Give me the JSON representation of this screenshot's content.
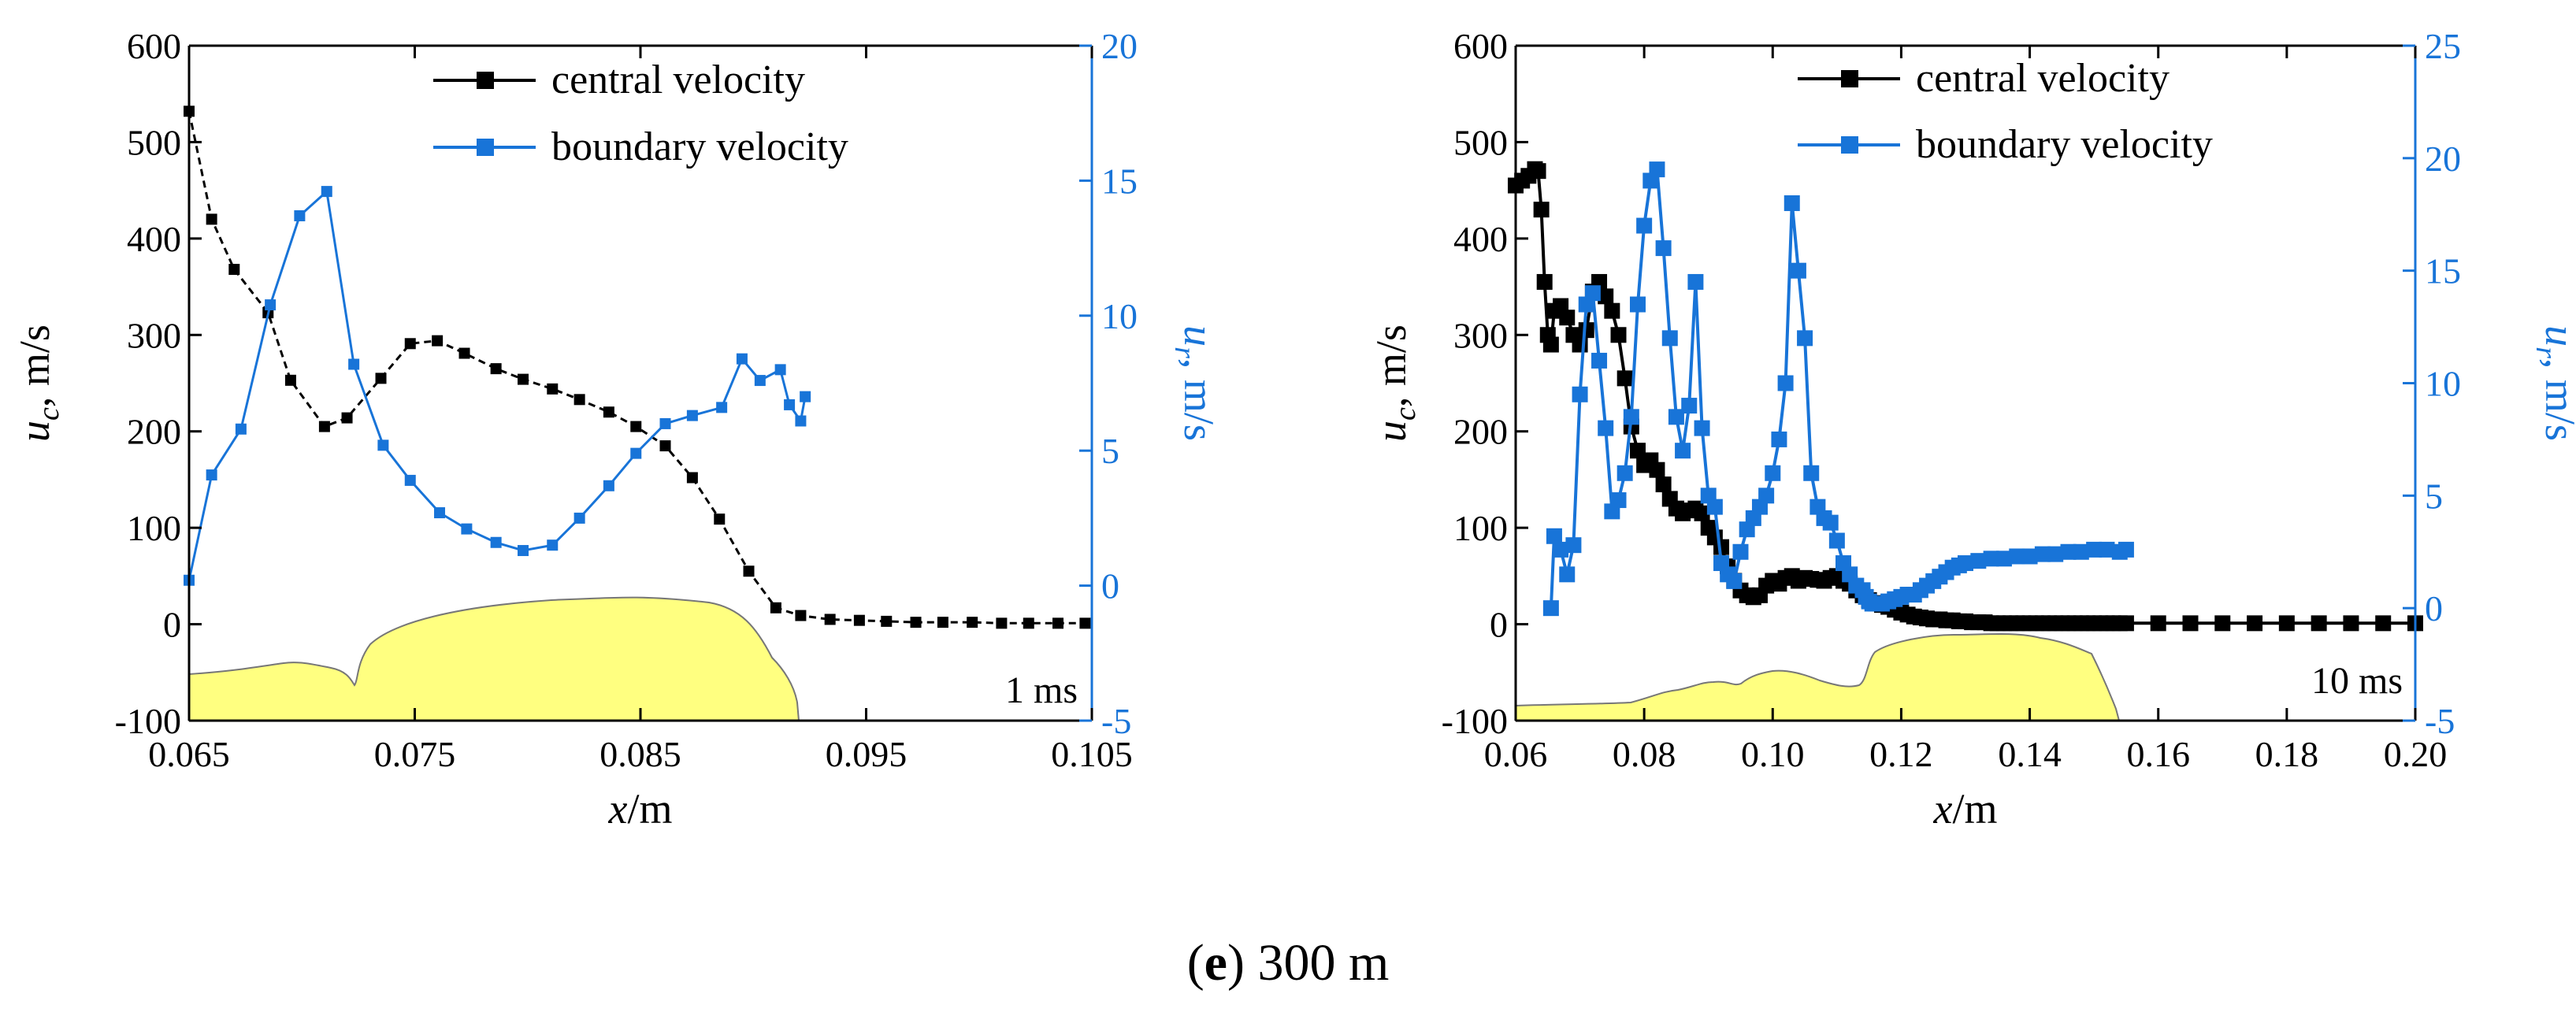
{
  "colors": {
    "central": "#000000",
    "boundary": "#1874d8",
    "fill": "#ffff80",
    "fillStroke": "#777777"
  },
  "caption": {
    "label": "e",
    "open": "(",
    "close": ")",
    "text": " 300 m"
  },
  "chart_data": [
    {
      "type": "line",
      "annotation": "1 ms",
      "xlabel_var": "x",
      "xlabel_unit": "/m",
      "ylabel_var": "u",
      "ylabel_sub": "c",
      "ylabel_unit": ", m/s",
      "y2label_var": "u",
      "y2label_sub": "r",
      "y2label_unit": ", m/s",
      "xlim": [
        0.065,
        0.105
      ],
      "ylim": [
        -100,
        600
      ],
      "y2lim": [
        -5,
        20
      ],
      "xticks": [
        0.065,
        0.075,
        0.085,
        0.095,
        0.105
      ],
      "xtick_labels": [
        "0.065",
        "0.075",
        "0.085",
        "0.095",
        "0.105"
      ],
      "yticks": [
        -100,
        0,
        100,
        200,
        300,
        400,
        500,
        600
      ],
      "ytick_labels": [
        "-100",
        "0",
        "100",
        "200",
        "300",
        "400",
        "500",
        "600"
      ],
      "y2ticks": [
        -5,
        0,
        5,
        10,
        15,
        20
      ],
      "y2tick_labels": [
        "-5",
        "0",
        "5",
        "10",
        "15",
        "20"
      ],
      "legend": [
        "central velocity",
        "boundary velocity"
      ],
      "series": [
        {
          "name": "central velocity",
          "axis": "left",
          "style": "dashed",
          "x": [
            0.065,
            0.066,
            0.067,
            0.0685,
            0.0695,
            0.071,
            0.072,
            0.0735,
            0.0748,
            0.076,
            0.0772,
            0.0786,
            0.0798,
            0.0811,
            0.0823,
            0.0836,
            0.0848,
            0.0861,
            0.0873,
            0.0885,
            0.0898,
            0.091,
            0.0921,
            0.0934,
            0.0947,
            0.0959,
            0.0972,
            0.0984,
            0.0997,
            0.101,
            0.1022,
            0.1035,
            0.1047
          ],
          "y": [
            532,
            420,
            368,
            323,
            253,
            205,
            214,
            255,
            291,
            294,
            281,
            265,
            254,
            244,
            233,
            220,
            205,
            185,
            152,
            109,
            55,
            17,
            9,
            5,
            4,
            3,
            2,
            2,
            2,
            1,
            1,
            1,
            1
          ]
        },
        {
          "name": "boundary velocity",
          "axis": "right",
          "style": "solid",
          "x": [
            0.065,
            0.066,
            0.0673,
            0.0686,
            0.0699,
            0.0711,
            0.0723,
            0.0736,
            0.0748,
            0.0761,
            0.0773,
            0.0786,
            0.0798,
            0.0811,
            0.0823,
            0.0836,
            0.0848,
            0.0861,
            0.0873,
            0.0886,
            0.0895,
            0.0903,
            0.0912,
            0.0916,
            0.0921,
            0.0923
          ],
          "y": [
            0.2,
            4.1,
            5.8,
            10.4,
            13.7,
            14.6,
            8.2,
            5.2,
            3.9,
            2.7,
            2.1,
            1.6,
            1.3,
            1.5,
            2.5,
            3.7,
            4.9,
            6.0,
            6.3,
            6.6,
            8.4,
            7.6,
            8.0,
            6.7,
            6.1,
            7.0
          ]
        }
      ],
      "shape_label": "yellow cavity profile"
    },
    {
      "type": "line",
      "annotation": "10 ms",
      "xlabel_var": "x",
      "xlabel_unit": "/m",
      "ylabel_var": "u",
      "ylabel_sub": "c",
      "ylabel_unit": ", m/s",
      "y2label_var": "u",
      "y2label_sub": "r",
      "y2label_unit": ", m/s",
      "xlim": [
        0.06,
        0.2
      ],
      "ylim": [
        -100,
        600
      ],
      "y2lim": [
        -5,
        25
      ],
      "xticks": [
        0.06,
        0.08,
        0.1,
        0.12,
        0.14,
        0.16,
        0.18,
        0.2
      ],
      "xtick_labels": [
        "0.06",
        "0.08",
        "0.10",
        "0.12",
        "0.14",
        "0.16",
        "0.18",
        "0.20"
      ],
      "yticks": [
        -100,
        0,
        100,
        200,
        300,
        400,
        500,
        600
      ],
      "ytick_labels": [
        "-100",
        "0",
        "100",
        "200",
        "300",
        "400",
        "500",
        "600"
      ],
      "y2ticks": [
        -5,
        0,
        5,
        10,
        15,
        20,
        25
      ],
      "y2tick_labels": [
        "-5",
        "0",
        "5",
        "10",
        "15",
        "20",
        "25"
      ],
      "legend": [
        "central velocity",
        "boundary velocity"
      ],
      "series": [
        {
          "name": "central velocity",
          "axis": "left",
          "style": "solid",
          "x": [
            0.06,
            0.061,
            0.062,
            0.063,
            0.0635,
            0.064,
            0.0645,
            0.065,
            0.0655,
            0.066,
            0.067,
            0.068,
            0.069,
            0.07,
            0.071,
            0.072,
            0.073,
            0.074,
            0.075,
            0.076,
            0.077,
            0.078,
            0.079,
            0.08,
            0.081,
            0.082,
            0.083,
            0.084,
            0.085,
            0.086,
            0.087,
            0.088,
            0.089,
            0.09,
            0.091,
            0.092,
            0.093,
            0.094,
            0.095,
            0.096,
            0.097,
            0.098,
            0.099,
            0.1,
            0.101,
            0.102,
            0.103,
            0.104,
            0.105,
            0.106,
            0.107,
            0.108,
            0.109,
            0.11,
            0.111,
            0.112,
            0.113,
            0.114,
            0.115,
            0.116,
            0.117,
            0.118,
            0.119,
            0.12,
            0.121,
            0.122,
            0.123,
            0.124,
            0.125,
            0.126,
            0.127,
            0.128,
            0.129,
            0.13,
            0.131,
            0.132,
            0.133,
            0.134,
            0.135,
            0.136,
            0.137,
            0.138,
            0.139,
            0.14,
            0.141,
            0.142,
            0.143,
            0.144,
            0.145,
            0.146,
            0.147,
            0.148,
            0.149,
            0.15,
            0.151,
            0.152,
            0.153,
            0.154,
            0.155,
            0.16,
            0.165,
            0.17,
            0.175,
            0.18,
            0.185,
            0.19,
            0.195,
            0.2
          ],
          "y": [
            455,
            460,
            465,
            472,
            470,
            430,
            355,
            300,
            290,
            325,
            330,
            318,
            300,
            290,
            305,
            345,
            355,
            340,
            325,
            300,
            255,
            205,
            180,
            165,
            170,
            160,
            145,
            130,
            120,
            115,
            118,
            120,
            115,
            100,
            90,
            80,
            60,
            45,
            35,
            30,
            28,
            30,
            40,
            45,
            42,
            48,
            50,
            45,
            48,
            47,
            46,
            45,
            48,
            50,
            45,
            42,
            35,
            30,
            25,
            22,
            20,
            18,
            15,
            12,
            10,
            8,
            7,
            6,
            5,
            5,
            4,
            4,
            3,
            3,
            2,
            2,
            2,
            1,
            1,
            1,
            1,
            1,
            1,
            1,
            1,
            1,
            1,
            1,
            1,
            1,
            1,
            1,
            1,
            1,
            1,
            1,
            1,
            1,
            1,
            1,
            1,
            1,
            1,
            1,
            1,
            1,
            1,
            1
          ]
        },
        {
          "name": "boundary velocity",
          "axis": "right",
          "style": "solid",
          "x": [
            0.0655,
            0.066,
            0.067,
            0.068,
            0.069,
            0.07,
            0.071,
            0.072,
            0.073,
            0.074,
            0.075,
            0.076,
            0.077,
            0.078,
            0.079,
            0.08,
            0.081,
            0.082,
            0.083,
            0.084,
            0.085,
            0.086,
            0.087,
            0.088,
            0.089,
            0.09,
            0.091,
            0.092,
            0.093,
            0.094,
            0.095,
            0.096,
            0.097,
            0.098,
            0.099,
            0.1,
            0.101,
            0.102,
            0.103,
            0.104,
            0.105,
            0.106,
            0.107,
            0.108,
            0.109,
            0.11,
            0.111,
            0.112,
            0.113,
            0.114,
            0.1145,
            0.115,
            0.1155,
            0.116,
            0.117,
            0.118,
            0.119,
            0.12,
            0.121,
            0.122,
            0.123,
            0.124,
            0.125,
            0.126,
            0.127,
            0.128,
            0.129,
            0.13,
            0.132,
            0.134,
            0.136,
            0.138,
            0.14,
            0.142,
            0.144,
            0.146,
            0.148,
            0.15,
            0.152,
            0.154,
            0.155
          ],
          "y": [
            0,
            3.2,
            2.6,
            1.5,
            2.8,
            9.5,
            13.5,
            14,
            11,
            8,
            4.3,
            4.8,
            6,
            8.5,
            13.5,
            17,
            19,
            19.5,
            16,
            12,
            8.5,
            7,
            9,
            14.5,
            8,
            5,
            4.5,
            2,
            1.5,
            1.2,
            2.5,
            3.5,
            4,
            4.5,
            5,
            6,
            7.5,
            10,
            18,
            15,
            12,
            6,
            4.5,
            4,
            3.8,
            3,
            2,
            1.5,
            1,
            0.8,
            0.5,
            0.3,
            0.2,
            0.2,
            0.2,
            0.3,
            0.4,
            0.5,
            0.6,
            0.6,
            0.8,
            1,
            1.2,
            1.4,
            1.6,
            1.8,
            1.9,
            2,
            2.1,
            2.2,
            2.2,
            2.3,
            2.3,
            2.4,
            2.4,
            2.5,
            2.5,
            2.6,
            2.6,
            2.5,
            2.6
          ]
        }
      ],
      "shape_label": "yellow cavity profile"
    }
  ]
}
